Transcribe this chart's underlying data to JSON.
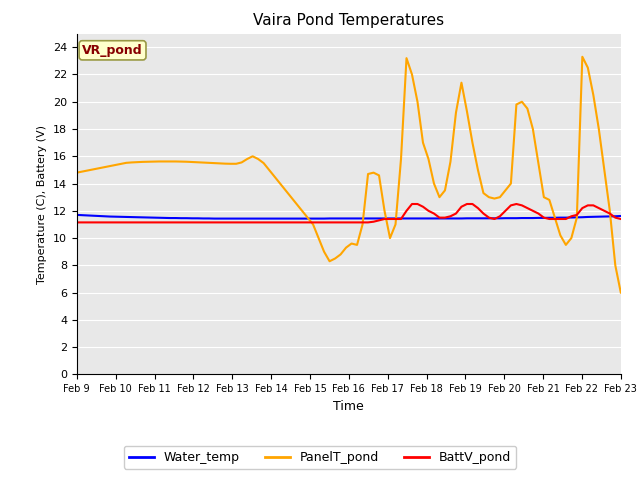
{
  "title": "Vaira Pond Temperatures",
  "xlabel": "Time",
  "ylabel": "Temperature (C), Battery (V)",
  "annotation_text": "VR_pond",
  "annotation_bg": "#ffffcc",
  "annotation_border": "#999944",
  "annotation_text_color": "#880000",
  "ylim": [
    0,
    25
  ],
  "yticks": [
    0,
    2,
    4,
    6,
    8,
    10,
    12,
    14,
    16,
    18,
    20,
    22,
    24
  ],
  "xtick_labels": [
    "Feb 9",
    "Feb 10",
    "Feb 11",
    "Feb 12",
    "Feb 13",
    "Feb 14",
    "Feb 15",
    "Feb 16",
    "Feb 17",
    "Feb 18",
    "Feb 19",
    "Feb 20",
    "Feb 21",
    "Feb 22",
    "Feb 23"
  ],
  "legend_labels": [
    "Water_temp",
    "PanelT_pond",
    "BattV_pond"
  ],
  "legend_colors": [
    "blue",
    "orange",
    "red"
  ],
  "water_temp_color": "blue",
  "panel_temp_color": "orange",
  "batt_v_color": "red",
  "bg_color": "#e8e8e8",
  "water_temp": [
    11.7,
    11.68,
    11.66,
    11.64,
    11.62,
    11.6,
    11.58,
    11.57,
    11.56,
    11.55,
    11.54,
    11.53,
    11.52,
    11.51,
    11.5,
    11.49,
    11.48,
    11.47,
    11.47,
    11.46,
    11.46,
    11.45,
    11.45,
    11.44,
    11.44,
    11.43,
    11.43,
    11.43,
    11.43,
    11.43,
    11.43,
    11.43,
    11.43,
    11.43,
    11.43,
    11.43,
    11.43,
    11.43,
    11.43,
    11.43,
    11.43,
    11.43,
    11.43,
    11.43,
    11.43,
    11.43,
    11.44,
    11.44,
    11.44,
    11.44,
    11.44,
    11.44,
    11.44,
    11.44,
    11.44,
    11.44,
    11.44,
    11.44,
    11.44,
    11.44,
    11.44,
    11.44,
    11.44,
    11.44,
    11.44,
    11.44,
    11.44,
    11.44,
    11.44,
    11.44,
    11.44,
    11.45,
    11.45,
    11.45,
    11.45,
    11.45,
    11.45,
    11.45,
    11.46,
    11.46,
    11.46,
    11.47,
    11.47,
    11.47,
    11.48,
    11.48,
    11.49,
    11.49,
    11.5,
    11.5,
    11.51,
    11.52,
    11.53,
    11.55,
    11.56,
    11.57,
    11.58,
    11.59,
    11.6,
    11.62
  ],
  "panel_temp": [
    14.8,
    14.88,
    14.96,
    15.04,
    15.12,
    15.2,
    15.28,
    15.36,
    15.44,
    15.52,
    15.55,
    15.57,
    15.59,
    15.6,
    15.61,
    15.62,
    15.62,
    15.62,
    15.62,
    15.61,
    15.6,
    15.58,
    15.56,
    15.54,
    15.52,
    15.5,
    15.48,
    15.46,
    15.45,
    15.45,
    15.55,
    15.8,
    16.0,
    15.8,
    15.5,
    15.0,
    14.5,
    14.0,
    13.5,
    13.0,
    12.5,
    12.0,
    11.5,
    11.0,
    10.0,
    9.0,
    8.3,
    8.5,
    8.8,
    9.3,
    9.6,
    9.5,
    11.0,
    14.7,
    14.8,
    14.6,
    12.0,
    10.0,
    11.0,
    15.8,
    23.2,
    22.0,
    20.0,
    17.0,
    15.8,
    14.0,
    13.0,
    13.5,
    15.6,
    19.2,
    21.4,
    19.3,
    17.0,
    15.0,
    13.3,
    13.0,
    12.9,
    13.0,
    13.5,
    14.0,
    19.8,
    20.0,
    19.5,
    18.0,
    15.5,
    13.0,
    12.8,
    11.5,
    10.2,
    9.5,
    10.0,
    11.5,
    23.3,
    22.5,
    20.5,
    18.0,
    15.0,
    12.0,
    8.0,
    6.0
  ],
  "batt_v": [
    11.15,
    11.15,
    11.15,
    11.15,
    11.15,
    11.15,
    11.15,
    11.15,
    11.15,
    11.15,
    11.15,
    11.15,
    11.15,
    11.15,
    11.15,
    11.15,
    11.15,
    11.15,
    11.15,
    11.15,
    11.15,
    11.15,
    11.15,
    11.15,
    11.15,
    11.15,
    11.15,
    11.15,
    11.15,
    11.15,
    11.15,
    11.15,
    11.15,
    11.15,
    11.15,
    11.15,
    11.15,
    11.15,
    11.15,
    11.15,
    11.15,
    11.15,
    11.15,
    11.15,
    11.15,
    11.15,
    11.15,
    11.15,
    11.15,
    11.15,
    11.15,
    11.15,
    11.15,
    11.15,
    11.2,
    11.3,
    11.4,
    11.4,
    11.4,
    11.4,
    12.0,
    12.5,
    12.5,
    12.3,
    12.0,
    11.8,
    11.5,
    11.5,
    11.6,
    11.8,
    12.3,
    12.5,
    12.5,
    12.2,
    11.8,
    11.5,
    11.4,
    11.6,
    12.0,
    12.4,
    12.5,
    12.4,
    12.2,
    12.0,
    11.8,
    11.5,
    11.4,
    11.4,
    11.4,
    11.4,
    11.6,
    11.7,
    12.2,
    12.4,
    12.4,
    12.2,
    12.0,
    11.8,
    11.5,
    11.4
  ]
}
